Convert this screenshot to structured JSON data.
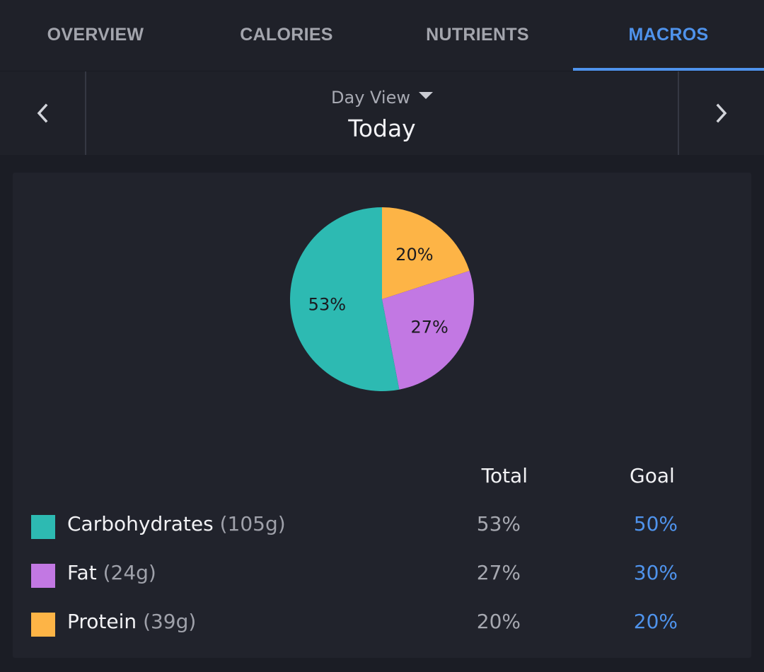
{
  "tabs": [
    {
      "label": "OVERVIEW",
      "active": false
    },
    {
      "label": "CALORIES",
      "active": false
    },
    {
      "label": "NUTRIENTS",
      "active": false
    },
    {
      "label": "MACROS",
      "active": true
    }
  ],
  "date_nav": {
    "view_label": "Day View",
    "date_label": "Today",
    "prev_icon": "chevron-left-icon",
    "next_icon": "chevron-right-icon",
    "dropdown_icon": "caret-down-icon"
  },
  "colors": {
    "accent": "#4f93ec",
    "carbohydrates": "#2dbab2",
    "fat": "#c278e3",
    "protein": "#fdb446"
  },
  "chart_data": {
    "type": "pie",
    "slices": [
      {
        "name": "Protein",
        "value": 20,
        "label": "20%",
        "color": "#fdb446"
      },
      {
        "name": "Fat",
        "value": 27,
        "label": "27%",
        "color": "#c278e3"
      },
      {
        "name": "Carbohydrates",
        "value": 53,
        "label": "53%",
        "color": "#2dbab2"
      }
    ]
  },
  "table": {
    "headers": {
      "total": "Total",
      "goal": "Goal"
    },
    "rows": [
      {
        "name": "Carbohydrates",
        "amount": "(105g)",
        "total": "53%",
        "goal": "50%",
        "color": "#2dbab2"
      },
      {
        "name": "Fat",
        "amount": "(24g)",
        "total": "27%",
        "goal": "30%",
        "color": "#c278e3"
      },
      {
        "name": "Protein",
        "amount": "(39g)",
        "total": "20%",
        "goal": "20%",
        "color": "#fdb446"
      }
    ]
  }
}
